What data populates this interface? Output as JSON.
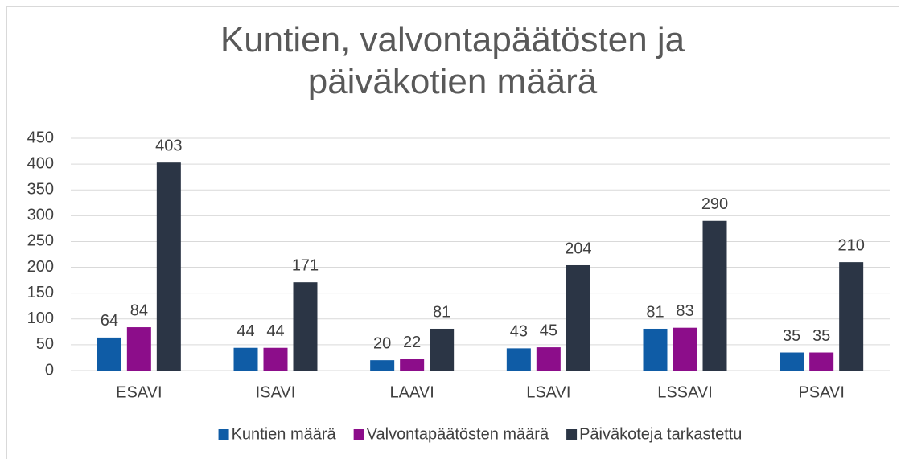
{
  "chart_data": {
    "type": "bar",
    "title": "Kuntien, valvontapäätösten ja päiväkotien määrä",
    "categories": [
      "ESAVI",
      "ISAVI",
      "LAAVI",
      "LSAVI",
      "LSSAVI",
      "PSAVI"
    ],
    "series": [
      {
        "name": "Kuntien määrä",
        "color": "#0f5ca6",
        "values": [
          64,
          44,
          20,
          43,
          81,
          35
        ]
      },
      {
        "name": "Valvontapäätösten määrä",
        "color": "#8c0d8a",
        "values": [
          84,
          44,
          22,
          45,
          83,
          35
        ]
      },
      {
        "name": "Päiväkoteja tarkastettu",
        "color": "#2b3545",
        "values": [
          403,
          171,
          81,
          204,
          290,
          210
        ]
      }
    ],
    "ylim": [
      0,
      450
    ],
    "yticks": [
      0,
      50,
      100,
      150,
      200,
      250,
      300,
      350,
      400,
      450
    ],
    "grid": true,
    "legend": "bottom"
  }
}
